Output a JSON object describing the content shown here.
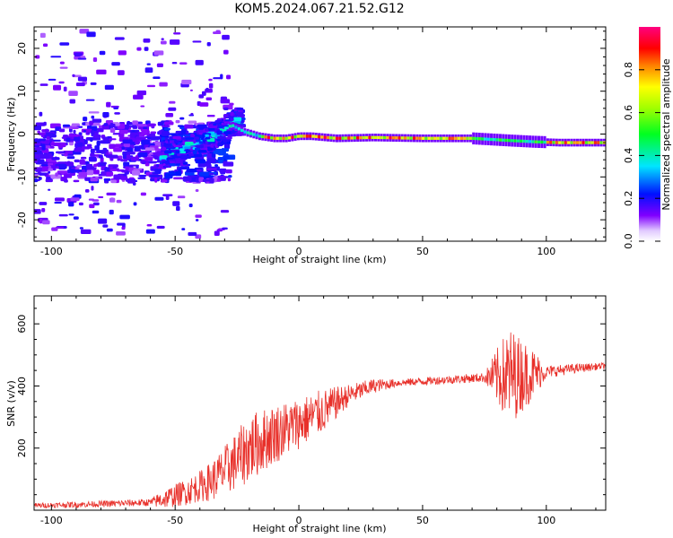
{
  "title": "KOM5.2024.067.21.52.G12",
  "chart_data": [
    {
      "type": "heatmap",
      "xlabel": "Height of straight line (km)",
      "ylabel": "Frequency (Hz)",
      "xlim": [
        -107,
        124
      ],
      "ylim": [
        -25,
        25
      ],
      "xticks": [
        -100,
        -50,
        0,
        50,
        100
      ],
      "yticks": [
        -20,
        -10,
        0,
        10,
        20
      ],
      "colorbar": {
        "label": "Normalized spectral amplitude",
        "range": [
          0.0,
          1.0
        ],
        "ticks": [
          0.0,
          0.2,
          0.4,
          0.6,
          0.8
        ]
      },
      "ridge": {
        "x": [
          -40,
          -33,
          -27,
          -22,
          -16,
          -10,
          -5,
          0,
          5,
          15,
          30,
          50,
          70,
          85,
          95,
          105,
          124
        ],
        "freq": [
          -1,
          1,
          2,
          0.5,
          -0.5,
          -1,
          -1,
          -0.5,
          -0.5,
          -1,
          -0.8,
          -1,
          -1,
          -1.5,
          -1.8,
          -2,
          -2
        ]
      }
    },
    {
      "type": "line",
      "xlabel": "Height of straight line (km)",
      "ylabel": "SNR (v/v)",
      "xlim": [
        -107,
        124
      ],
      "ylim": [
        0,
        690
      ],
      "xticks": [
        -100,
        -50,
        0,
        50,
        100
      ],
      "yticks": [
        200,
        400,
        600
      ],
      "color": "#e8302a",
      "trend": {
        "x": [
          -107,
          -80,
          -60,
          -55,
          -45,
          -35,
          -25,
          -20,
          -10,
          0,
          10,
          20,
          30,
          40,
          50,
          60,
          70,
          80,
          90,
          100,
          110,
          124
        ],
        "y": [
          15,
          20,
          25,
          35,
          60,
          95,
          160,
          200,
          245,
          280,
          320,
          370,
          400,
          410,
          415,
          420,
          425,
          430,
          435,
          445,
          455,
          465
        ]
      },
      "amplitude": {
        "x": [
          -107,
          -60,
          -55,
          -40,
          -30,
          -20,
          -5,
          10,
          20,
          40,
          75,
          80,
          85,
          90,
          95,
          100,
          124
        ],
        "y": [
          8,
          12,
          30,
          50,
          80,
          110,
          90,
          70,
          35,
          12,
          15,
          90,
          160,
          120,
          80,
          20,
          10
        ]
      }
    }
  ]
}
